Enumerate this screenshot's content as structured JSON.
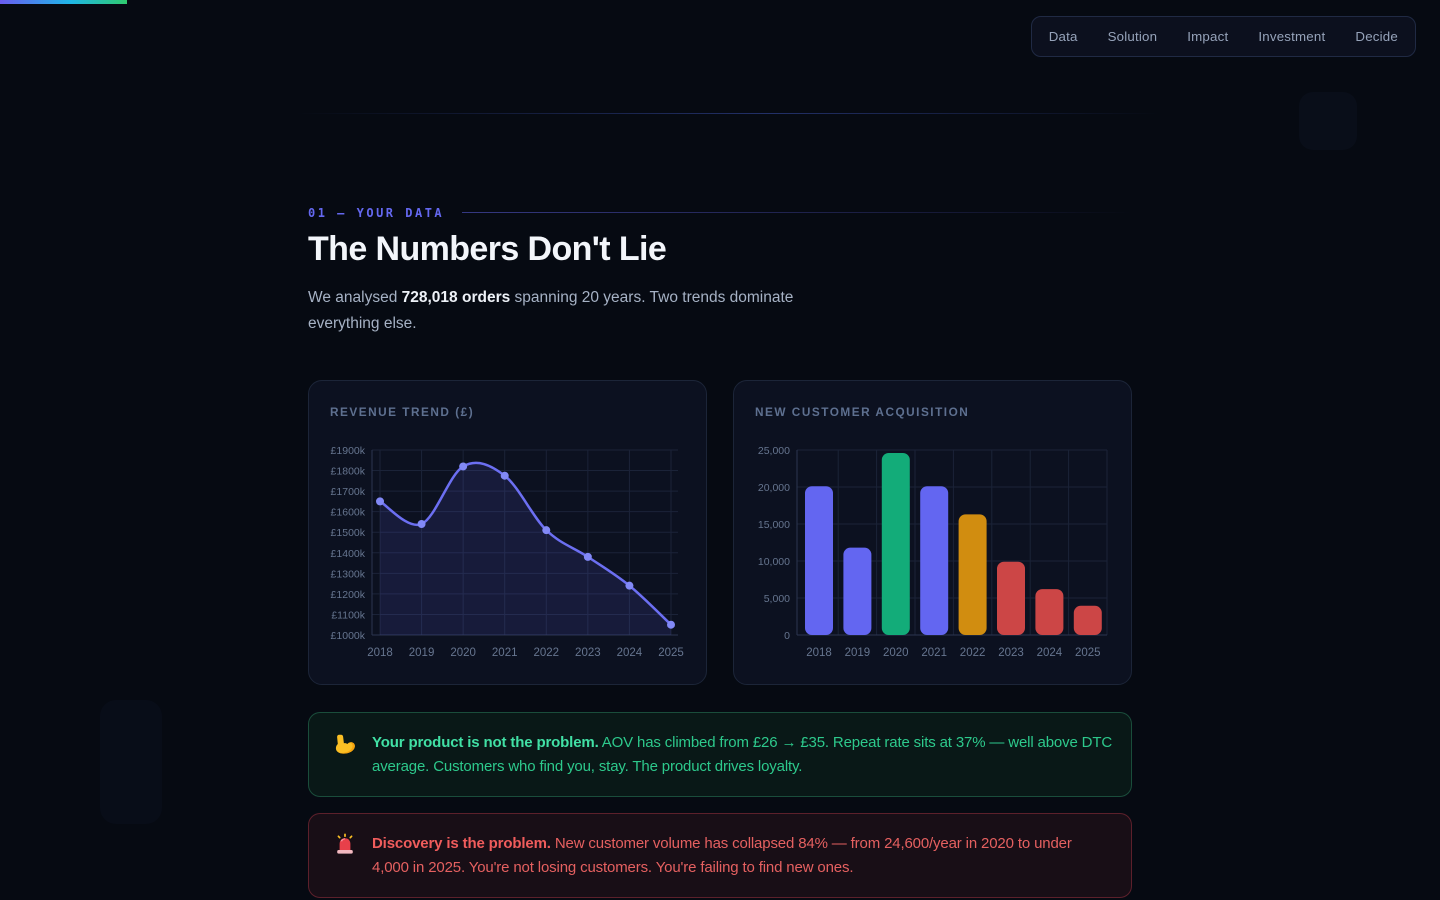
{
  "nav": {
    "items": [
      "Data",
      "Solution",
      "Impact",
      "Investment",
      "Decide"
    ]
  },
  "section": {
    "kicker": "01 — YOUR DATA",
    "title": "The Numbers Don't Lie",
    "lede_pre": "We analysed ",
    "lede_bold": "728,018 orders",
    "lede_post": " spanning 20 years. Two trends dominate everything else."
  },
  "chart_data": [
    {
      "type": "line",
      "title": "REVENUE TREND (£)",
      "x": [
        "2018",
        "2019",
        "2020",
        "2021",
        "2022",
        "2023",
        "2024",
        "2025"
      ],
      "values": [
        1650,
        1540,
        1820,
        1775,
        1510,
        1380,
        1240,
        1050
      ],
      "ylabel_format": "£{v}k",
      "ylim": [
        1000,
        1900
      ],
      "ytick_step": 100,
      "line_color": "#6c6ff2",
      "point_color": "#8289f6",
      "area_color": "rgba(99,102,241,0.13)",
      "grid": true,
      "legend": false
    },
    {
      "type": "bar",
      "title": "NEW CUSTOMER ACQUISITION",
      "categories": [
        "2018",
        "2019",
        "2020",
        "2021",
        "2022",
        "2023",
        "2024",
        "2025"
      ],
      "values": [
        20100,
        11800,
        24600,
        20100,
        16300,
        9900,
        6200,
        3950
      ],
      "bar_colors": [
        "#6366f1",
        "#6366f1",
        "#13ac79",
        "#6366f1",
        "#d18d10",
        "#cc4646",
        "#cc4646",
        "#cc4646"
      ],
      "ylim": [
        0,
        25000
      ],
      "ytick_step": 5000,
      "grid": true,
      "legend": false
    }
  ],
  "callouts": [
    {
      "kind": "positive",
      "icon": "flexed-biceps",
      "bold": "Your product is not the problem.",
      "text_line1": " AOV has climbed from £26 → £35. Repeat rate sits at 37% — well above DTC",
      "text_line2": "average. Customers who find you, stay. The product drives loyalty.",
      "accent_color": "#34d399"
    },
    {
      "kind": "negative",
      "icon": "siren",
      "bold": "Discovery is the problem.",
      "text_line1": " New customer volume has collapsed 84% — from 24,600/year in 2020 to under",
      "text_line2": "4,000 in 2025. You're not losing customers. You're failing to find new ones.",
      "accent_color": "#f87171"
    }
  ],
  "theme": {
    "background": "#060a12",
    "card_background": "#0c1120",
    "accent_indigo": "#6366f1",
    "progress_gradient": [
      "#6a5cf0",
      "#1fb6e8",
      "#2fcb6e"
    ]
  }
}
